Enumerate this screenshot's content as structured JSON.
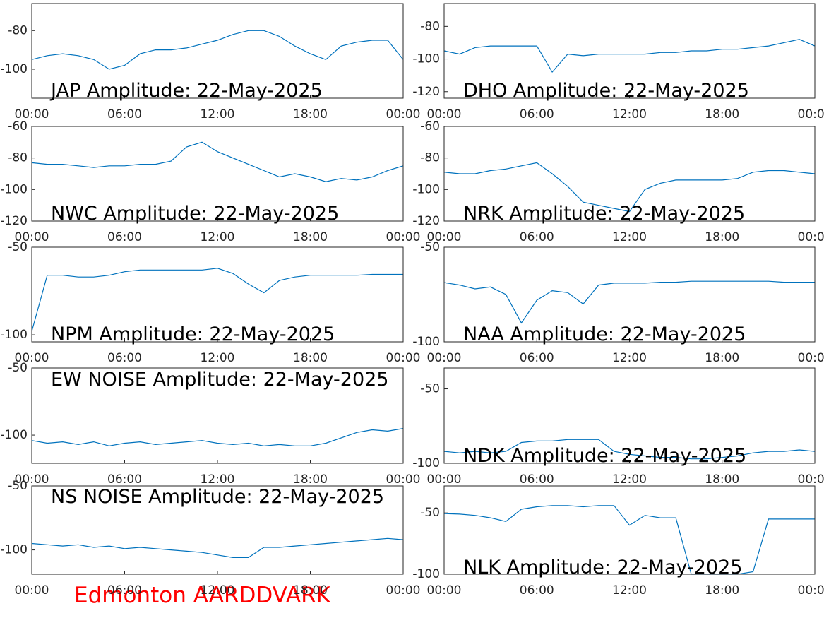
{
  "title": "Edmonton AARDDVARK",
  "chart_data": [
    {
      "type": "line",
      "title": "JAP Amplitude: 22-May-2025",
      "color": "#0072bd",
      "x": [
        0,
        1,
        2,
        3,
        4,
        5,
        6,
        7,
        8,
        9,
        10,
        11,
        12,
        13,
        14,
        15,
        16,
        17,
        18,
        19,
        20,
        21,
        22,
        23,
        24
      ],
      "values": [
        -95,
        -93,
        -92,
        -93,
        -95,
        -100,
        -98,
        -92,
        -90,
        -90,
        -89,
        -87,
        -85,
        -82,
        -80,
        -80,
        -83,
        -88,
        -92,
        -95,
        -88,
        -86,
        -85,
        -85,
        -95
      ],
      "xlim": [
        0,
        24
      ],
      "ylim": [
        -115,
        -66
      ],
      "xticks": [
        {
          "value": 0,
          "label": "00:00"
        },
        {
          "value": 6,
          "label": "06:00"
        },
        {
          "value": 12,
          "label": "12:00"
        },
        {
          "value": 18,
          "label": "18:00"
        },
        {
          "value": 24,
          "label": "00:00"
        }
      ],
      "yticks": [
        -100,
        -80
      ]
    },
    {
      "type": "line",
      "title": "DHO Amplitude: 22-May-2025",
      "color": "#0072bd",
      "x": [
        0,
        1,
        2,
        3,
        4,
        5,
        6,
        7,
        8,
        9,
        10,
        11,
        12,
        13,
        14,
        15,
        16,
        17,
        18,
        19,
        20,
        21,
        22,
        23,
        24
      ],
      "values": [
        -95,
        -97,
        -93,
        -92,
        -92,
        -92,
        -92,
        -108,
        -97,
        -98,
        -97,
        -97,
        -97,
        -97,
        -96,
        -96,
        -95,
        -95,
        -94,
        -94,
        -93,
        -92,
        -90,
        -88,
        -92
      ],
      "xlim": [
        0,
        24
      ],
      "ylim": [
        -124,
        -66
      ],
      "xticks": [
        {
          "value": 0,
          "label": "00:00"
        },
        {
          "value": 6,
          "label": "06:00"
        },
        {
          "value": 12,
          "label": "12:00"
        },
        {
          "value": 18,
          "label": "18:00"
        },
        {
          "value": 24,
          "label": "00:00"
        }
      ],
      "yticks": [
        -120,
        -100,
        -80
      ]
    },
    {
      "type": "line",
      "title": "NWC Amplitude: 22-May-2025",
      "color": "#0072bd",
      "x": [
        0,
        1,
        2,
        3,
        4,
        5,
        6,
        7,
        8,
        9,
        10,
        11,
        12,
        13,
        14,
        15,
        16,
        17,
        18,
        19,
        20,
        21,
        22,
        23,
        24
      ],
      "values": [
        -83,
        -84,
        -84,
        -85,
        -86,
        -85,
        -85,
        -84,
        -84,
        -82,
        -73,
        -70,
        -76,
        -80,
        -84,
        -88,
        -92,
        -90,
        -92,
        -95,
        -93,
        -94,
        -92,
        -88,
        -85
      ],
      "xlim": [
        0,
        24
      ],
      "ylim": [
        -120,
        -60
      ],
      "xticks": [
        {
          "value": 0,
          "label": "00:00"
        },
        {
          "value": 6,
          "label": "06:00"
        },
        {
          "value": 12,
          "label": "12:00"
        },
        {
          "value": 18,
          "label": "18:00"
        },
        {
          "value": 24,
          "label": "00:00"
        }
      ],
      "yticks": [
        -120,
        -100,
        -80,
        -60
      ]
    },
    {
      "type": "line",
      "title": "NRK Amplitude: 22-May-2025",
      "color": "#0072bd",
      "x": [
        0,
        1,
        2,
        3,
        4,
        5,
        6,
        7,
        8,
        9,
        10,
        11,
        12,
        13,
        14,
        15,
        16,
        17,
        18,
        19,
        20,
        21,
        22,
        23,
        24
      ],
      "values": [
        -89,
        -90,
        -90,
        -88,
        -87,
        -85,
        -83,
        -90,
        -98,
        -108,
        -110,
        -112,
        -114,
        -100,
        -96,
        -94,
        -94,
        -94,
        -94,
        -93,
        -89,
        -88,
        -88,
        -89,
        -90
      ],
      "xlim": [
        0,
        24
      ],
      "ylim": [
        -120,
        -60
      ],
      "xticks": [
        {
          "value": 0,
          "label": "00:00"
        },
        {
          "value": 6,
          "label": "06:00"
        },
        {
          "value": 12,
          "label": "12:00"
        },
        {
          "value": 18,
          "label": "18:00"
        },
        {
          "value": 24,
          "label": "00:00"
        }
      ],
      "yticks": [
        -120,
        -100,
        -80,
        -60
      ]
    },
    {
      "type": "line",
      "title": "NPM Amplitude: 22-May-2025",
      "color": "#0072bd",
      "x": [
        0,
        1,
        2,
        3,
        4,
        5,
        6,
        7,
        8,
        9,
        10,
        11,
        12,
        13,
        14,
        15,
        16,
        17,
        18,
        19,
        20,
        21,
        22,
        23,
        24
      ],
      "values": [
        -98,
        -66,
        -66,
        -67,
        -67,
        -66,
        -64,
        -63,
        -63,
        -63,
        -63,
        -63,
        -62,
        -65,
        -71,
        -76,
        -69,
        -67,
        -66,
        -66,
        -66,
        -66,
        -65.5,
        -65.5,
        -65.5
      ],
      "xlim": [
        0,
        24
      ],
      "ylim": [
        -104,
        -50
      ],
      "xticks": [
        {
          "value": 0,
          "label": "00:00"
        },
        {
          "value": 6,
          "label": "06:00"
        },
        {
          "value": 12,
          "label": "12:00"
        },
        {
          "value": 18,
          "label": "18:00"
        },
        {
          "value": 24,
          "label": "00:00"
        }
      ],
      "yticks": [
        -100,
        -50
      ]
    },
    {
      "type": "line",
      "title": "NAA Amplitude: 22-May-2025",
      "color": "#0072bd",
      "x": [
        0,
        1,
        2,
        3,
        4,
        5,
        6,
        7,
        8,
        9,
        10,
        11,
        12,
        13,
        14,
        15,
        16,
        17,
        18,
        19,
        20,
        21,
        22,
        23,
        24
      ],
      "values": [
        -68.7,
        -70,
        -72,
        -71,
        -75,
        -90,
        -78,
        -73,
        -74,
        -80,
        -70,
        -69,
        -69,
        -69,
        -68.5,
        -68.5,
        -68,
        -68,
        -68,
        -68,
        -68,
        -68,
        -68.5,
        -68.5,
        -68.5
      ],
      "xlim": [
        0,
        24
      ],
      "ylim": [
        -100,
        -50
      ],
      "xticks": [
        {
          "value": 0,
          "label": "00:00"
        },
        {
          "value": 6,
          "label": "06:00"
        },
        {
          "value": 12,
          "label": "12:00"
        },
        {
          "value": 18,
          "label": "18:00"
        },
        {
          "value": 24,
          "label": "00:00"
        }
      ],
      "yticks": [
        -100,
        -50
      ]
    },
    {
      "type": "line",
      "title": "EW NOISE Amplitude: 22-May-2025",
      "color": "#0072bd",
      "x": [
        0,
        1,
        2,
        3,
        4,
        5,
        6,
        7,
        8,
        9,
        10,
        11,
        12,
        13,
        14,
        15,
        16,
        17,
        18,
        19,
        20,
        21,
        22,
        23,
        24
      ],
      "values": [
        -104,
        -106,
        -105,
        -107,
        -105,
        -108,
        -106,
        -105,
        -107,
        -106,
        -105,
        -104,
        -106,
        -107,
        -106,
        -108,
        -107,
        -108,
        -108,
        -106,
        -102,
        -98,
        -96,
        -97,
        -95
      ],
      "xlim": [
        0,
        24
      ],
      "ylim": [
        -121,
        -50
      ],
      "xticks": [
        {
          "value": 0,
          "label": "00:00"
        },
        {
          "value": 6,
          "label": "06:00"
        },
        {
          "value": 12,
          "label": "12:00"
        },
        {
          "value": 18,
          "label": "18:00"
        },
        {
          "value": 24,
          "label": "00:00"
        }
      ],
      "yticks": [
        -100,
        -50
      ]
    },
    {
      "type": "line",
      "title": "NDK Amplitude: 22-May-2025",
      "color": "#0072bd",
      "x": [
        0,
        1,
        2,
        3,
        4,
        5,
        6,
        7,
        8,
        9,
        10,
        11,
        12,
        13,
        14,
        15,
        16,
        17,
        18,
        19,
        20,
        21,
        22,
        23,
        24
      ],
      "values": [
        -92,
        -93,
        -92,
        -93,
        -92,
        -86,
        -85,
        -85,
        -84,
        -84,
        -84,
        -92,
        -94,
        -95,
        -96,
        -96,
        -97,
        -97,
        -96,
        -95,
        -93,
        -92,
        -92,
        -91,
        -92
      ],
      "xlim": [
        0,
        24
      ],
      "ylim": [
        -100,
        -36
      ],
      "xticks": [
        {
          "value": 0,
          "label": "00:00"
        },
        {
          "value": 6,
          "label": "06:00"
        },
        {
          "value": 12,
          "label": "12:00"
        },
        {
          "value": 18,
          "label": "18:00"
        },
        {
          "value": 24,
          "label": "00:00"
        }
      ],
      "yticks": [
        -100,
        -50
      ]
    },
    {
      "type": "line",
      "title": "NS NOISE Amplitude: 22-May-2025",
      "color": "#0072bd",
      "x": [
        0,
        1,
        2,
        3,
        4,
        5,
        6,
        7,
        8,
        9,
        10,
        11,
        12,
        13,
        14,
        15,
        16,
        17,
        18,
        19,
        20,
        21,
        22,
        23,
        24
      ],
      "values": [
        -95,
        -96,
        -97,
        -96,
        -98,
        -97,
        -99,
        -98,
        -99,
        -100,
        -101,
        -102,
        -104,
        -106,
        -106,
        -98,
        -98,
        -97,
        -96,
        -95,
        -94,
        -93,
        -92,
        -91,
        -92
      ],
      "xlim": [
        0,
        24
      ],
      "ylim": [
        -119,
        -50
      ],
      "xticks": [
        {
          "value": 0,
          "label": "00:00"
        },
        {
          "value": 6,
          "label": "06:00"
        },
        {
          "value": 12,
          "label": "12:00"
        },
        {
          "value": 18,
          "label": "18:00"
        },
        {
          "value": 24,
          "label": "00:00"
        }
      ],
      "yticks": [
        -100,
        -50
      ]
    },
    {
      "type": "line",
      "title": "NLK Amplitude: 22-May-2025",
      "color": "#0072bd",
      "x": [
        0,
        1,
        2,
        3,
        4,
        5,
        6,
        7,
        8,
        9,
        10,
        11,
        12,
        13,
        14,
        15,
        16,
        17,
        18,
        19,
        20,
        21,
        22,
        23,
        24
      ],
      "values": [
        -50.6,
        -51,
        -52,
        -54,
        -57,
        -47,
        -45,
        -44,
        -44,
        -45,
        -44,
        -44,
        -60,
        -52,
        -54,
        -54,
        -100,
        -100,
        -100,
        -100,
        -98,
        -55,
        -55,
        -55,
        -55
      ],
      "xlim": [
        0,
        24
      ],
      "ylim": [
        -100,
        -28
      ],
      "xticks": [
        {
          "value": 0,
          "label": "00:00"
        },
        {
          "value": 6,
          "label": "06:00"
        },
        {
          "value": 12,
          "label": "12:00"
        },
        {
          "value": 18,
          "label": "18:00"
        },
        {
          "value": 24,
          "label": "00:00"
        }
      ],
      "yticks": [
        -100,
        -50
      ]
    }
  ]
}
